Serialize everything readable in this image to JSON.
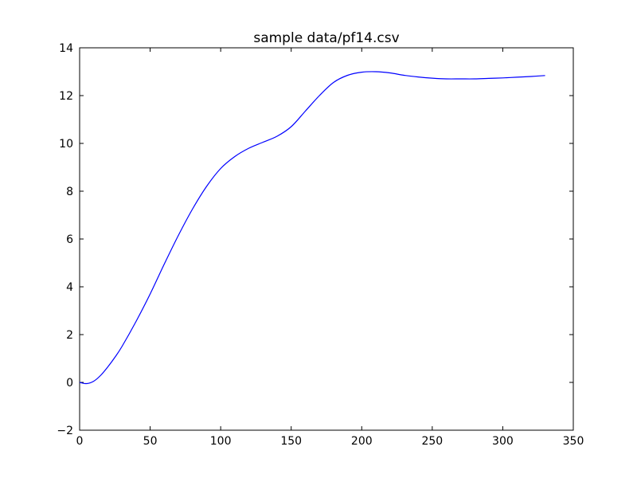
{
  "chart_data": {
    "type": "line",
    "title": "sample data/pf14.csv",
    "xlabel": "",
    "ylabel": "",
    "xlim": [
      0,
      350
    ],
    "ylim": [
      -2,
      14
    ],
    "x_ticks": [
      0,
      50,
      100,
      150,
      200,
      250,
      300,
      350
    ],
    "y_ticks": [
      -2,
      0,
      2,
      4,
      6,
      8,
      10,
      12,
      14
    ],
    "x_tick_labels": [
      "0",
      "50",
      "100",
      "150",
      "200",
      "250",
      "300",
      "350"
    ],
    "y_tick_labels": [
      "−2",
      "0",
      "2",
      "4",
      "6",
      "8",
      "10",
      "12",
      "14"
    ],
    "grid": false,
    "series": [
      {
        "color": "#0000ff",
        "x": [
          0,
          5,
          10,
          15,
          20,
          25,
          30,
          40,
          50,
          60,
          70,
          80,
          90,
          100,
          110,
          120,
          130,
          140,
          150,
          160,
          170,
          180,
          190,
          200,
          210,
          220,
          230,
          240,
          250,
          260,
          270,
          280,
          290,
          300,
          310,
          320,
          330
        ],
        "y": [
          0.0,
          -0.05,
          0.05,
          0.3,
          0.65,
          1.05,
          1.5,
          2.55,
          3.7,
          4.95,
          6.15,
          7.25,
          8.2,
          8.95,
          9.45,
          9.8,
          10.05,
          10.3,
          10.7,
          11.35,
          12.0,
          12.55,
          12.85,
          12.98,
          13.0,
          12.95,
          12.85,
          12.78,
          12.73,
          12.7,
          12.7,
          12.7,
          12.72,
          12.74,
          12.77,
          12.8,
          12.84
        ]
      }
    ]
  }
}
